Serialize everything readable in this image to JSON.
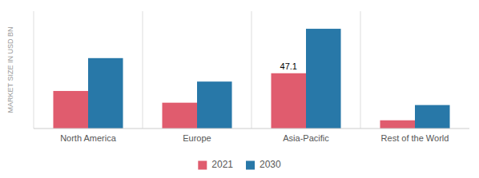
{
  "chart_data": {
    "type": "bar",
    "categories": [
      "North America",
      "Europe",
      "Asia-Pacific",
      "Rest of the World"
    ],
    "series": [
      {
        "name": "2021",
        "color": "#e05c6e",
        "values": [
          32,
          22,
          47.1,
          7
        ]
      },
      {
        "name": "2030",
        "color": "#2878a8",
        "values": [
          60,
          40,
          85,
          20
        ]
      }
    ],
    "ylabel": "MARKET SIZE IN USD BN",
    "ylim": [
      0,
      100
    ],
    "annotations": [
      {
        "text": "47.1",
        "category": "Asia-Pacific",
        "series": "2021"
      }
    ],
    "grid": false,
    "legend": "bottom",
    "tick_labels": "x"
  }
}
